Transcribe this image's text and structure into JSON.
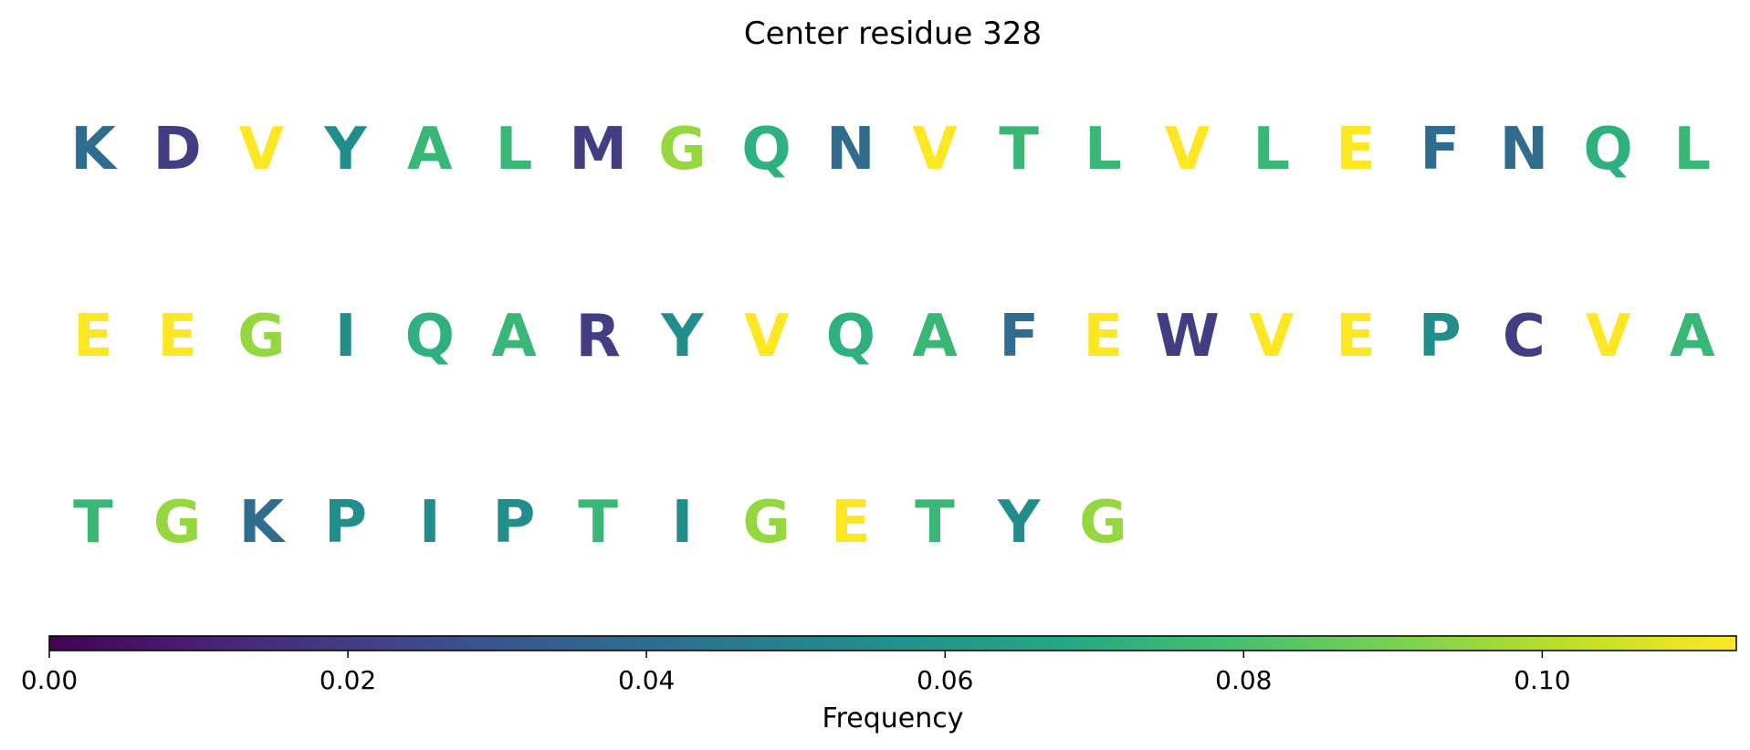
{
  "chart_data": {
    "type": "heatmap",
    "title": "Center residue 328",
    "colorbar": {
      "label": "Frequency",
      "range": [
        0.0,
        0.113
      ],
      "ticks": [
        "0.00",
        "0.02",
        "0.04",
        "0.06",
        "0.08",
        "0.10"
      ],
      "tick_values": [
        0.0,
        0.02,
        0.04,
        0.06,
        0.08,
        0.1
      ],
      "colormap": "viridis",
      "orientation": "horizontal"
    },
    "rows": [
      [
        {
          "residue": "K",
          "value": 0.04
        },
        {
          "residue": "D",
          "value": 0.02
        },
        {
          "residue": "V",
          "value": 0.113
        },
        {
          "residue": "Y",
          "value": 0.055
        },
        {
          "residue": "A",
          "value": 0.075
        },
        {
          "residue": "L",
          "value": 0.075
        },
        {
          "residue": "M",
          "value": 0.02
        },
        {
          "residue": "G",
          "value": 0.095
        },
        {
          "residue": "Q",
          "value": 0.072
        },
        {
          "residue": "N",
          "value": 0.04
        },
        {
          "residue": "V",
          "value": 0.113
        },
        {
          "residue": "T",
          "value": 0.075
        },
        {
          "residue": "L",
          "value": 0.075
        },
        {
          "residue": "V",
          "value": 0.113
        },
        {
          "residue": "L",
          "value": 0.075
        },
        {
          "residue": "E",
          "value": 0.113
        },
        {
          "residue": "F",
          "value": 0.04
        },
        {
          "residue": "N",
          "value": 0.04
        },
        {
          "residue": "Q",
          "value": 0.072
        },
        {
          "residue": "L",
          "value": 0.075
        }
      ],
      [
        {
          "residue": "E",
          "value": 0.113
        },
        {
          "residue": "E",
          "value": 0.113
        },
        {
          "residue": "G",
          "value": 0.095
        },
        {
          "residue": "I",
          "value": 0.055
        },
        {
          "residue": "Q",
          "value": 0.072
        },
        {
          "residue": "A",
          "value": 0.075
        },
        {
          "residue": "R",
          "value": 0.02
        },
        {
          "residue": "Y",
          "value": 0.055
        },
        {
          "residue": "V",
          "value": 0.113
        },
        {
          "residue": "Q",
          "value": 0.072
        },
        {
          "residue": "A",
          "value": 0.075
        },
        {
          "residue": "F",
          "value": 0.04
        },
        {
          "residue": "E",
          "value": 0.113
        },
        {
          "residue": "W",
          "value": 0.02
        },
        {
          "residue": "V",
          "value": 0.113
        },
        {
          "residue": "E",
          "value": 0.113
        },
        {
          "residue": "P",
          "value": 0.055
        },
        {
          "residue": "C",
          "value": 0.02
        },
        {
          "residue": "V",
          "value": 0.113
        },
        {
          "residue": "A",
          "value": 0.075
        }
      ],
      [
        {
          "residue": "T",
          "value": 0.075
        },
        {
          "residue": "G",
          "value": 0.095
        },
        {
          "residue": "K",
          "value": 0.04
        },
        {
          "residue": "P",
          "value": 0.055
        },
        {
          "residue": "I",
          "value": 0.055
        },
        {
          "residue": "P",
          "value": 0.055
        },
        {
          "residue": "T",
          "value": 0.075
        },
        {
          "residue": "I",
          "value": 0.055
        },
        {
          "residue": "G",
          "value": 0.095
        },
        {
          "residue": "E",
          "value": 0.113
        },
        {
          "residue": "T",
          "value": 0.075
        },
        {
          "residue": "Y",
          "value": 0.055
        },
        {
          "residue": "G",
          "value": 0.095
        }
      ]
    ]
  }
}
